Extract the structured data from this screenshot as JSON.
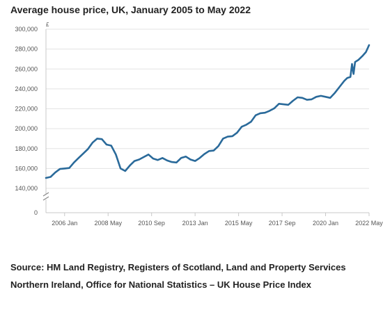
{
  "title": "Average house price, UK, January 2005 to May 2022",
  "source": "Source: HM Land Registry, Registers of Scotland, Land and Property Services Northern Ireland, Office for National Statistics – UK House Price Index",
  "colors": {
    "line": "#2a6a9a",
    "grid": "#e3e3e3",
    "axis": "#c8c8c8"
  },
  "chart_data": {
    "type": "line",
    "title": "Average house price, UK, January 2005 to May 2022",
    "y_unit": "£",
    "ylim": [
      0,
      300000
    ],
    "y_axis_break": true,
    "y_ticks": [
      0,
      140000,
      160000,
      180000,
      200000,
      220000,
      240000,
      260000,
      280000,
      300000
    ],
    "y_tick_labels": [
      "0",
      "140,000",
      "160,000",
      "180,000",
      "200,000",
      "220,000",
      "240,000",
      "260,000",
      "280,000",
      "300,000"
    ],
    "xlim": [
      "2005-01",
      "2022-05"
    ],
    "x_ticks": [
      "2006-01",
      "2008-05",
      "2010-09",
      "2013-01",
      "2015-05",
      "2017-09",
      "2020-01",
      "2022-05"
    ],
    "x_tick_labels": [
      "2006 Jan",
      "2008 May",
      "2010 Sep",
      "2013 Jan",
      "2015 May",
      "2017 Sep",
      "2020 Jan",
      "2022 May"
    ],
    "grid": true,
    "series": [
      {
        "x": [
          "2005-01",
          "2005-04",
          "2005-07",
          "2005-10",
          "2006-01",
          "2006-04",
          "2006-07",
          "2006-10",
          "2007-01",
          "2007-04",
          "2007-07",
          "2007-10",
          "2008-01",
          "2008-04",
          "2008-07",
          "2008-10",
          "2009-01",
          "2009-04",
          "2009-07",
          "2009-10",
          "2010-01",
          "2010-04",
          "2010-07",
          "2010-10",
          "2011-01",
          "2011-04",
          "2011-07",
          "2011-10",
          "2012-01",
          "2012-04",
          "2012-07",
          "2012-10",
          "2013-01",
          "2013-04",
          "2013-07",
          "2013-10",
          "2014-01",
          "2014-04",
          "2014-07",
          "2014-10",
          "2015-01",
          "2015-04",
          "2015-07",
          "2015-10",
          "2016-01",
          "2016-04",
          "2016-07",
          "2016-10",
          "2017-01",
          "2017-04",
          "2017-07",
          "2017-10",
          "2018-01",
          "2018-04",
          "2018-07",
          "2018-10",
          "2019-01",
          "2019-04",
          "2019-07",
          "2019-10",
          "2020-01",
          "2020-04",
          "2020-07",
          "2020-10",
          "2021-01",
          "2021-03",
          "2021-05",
          "2021-06",
          "2021-07",
          "2021-08",
          "2021-10",
          "2022-01",
          "2022-03",
          "2022-05"
        ],
        "values": [
          150500,
          151500,
          156000,
          159500,
          160000,
          160500,
          166000,
          170500,
          175000,
          179500,
          186000,
          190000,
          189500,
          184000,
          183000,
          174000,
          160000,
          157500,
          163000,
          167500,
          169000,
          171500,
          174000,
          170000,
          168500,
          170500,
          168000,
          166500,
          166000,
          170500,
          172000,
          169000,
          167500,
          170500,
          174500,
          177500,
          178000,
          182500,
          190000,
          192000,
          192500,
          196000,
          202000,
          204000,
          207000,
          213500,
          215500,
          216000,
          218000,
          220500,
          225000,
          224500,
          224000,
          228000,
          231500,
          231000,
          229000,
          229500,
          232000,
          233000,
          232000,
          231000,
          236000,
          242000,
          248000,
          251000,
          252000,
          265000,
          255000,
          267000,
          269000,
          273500,
          277000,
          284000
        ]
      }
    ]
  }
}
